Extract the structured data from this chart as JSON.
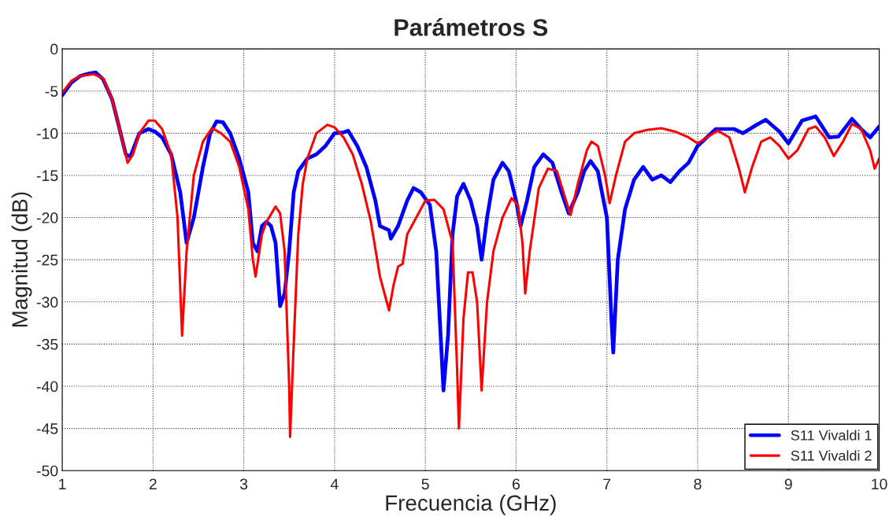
{
  "chart_data": {
    "type": "line",
    "title": "Parámetros S",
    "xlabel": "Frecuencia (GHz)",
    "ylabel": "Magnitud (dB)",
    "xlim": [
      1,
      10
    ],
    "ylim": [
      -50,
      0
    ],
    "xticks": [
      1,
      2,
      3,
      4,
      5,
      6,
      7,
      8,
      9,
      10
    ],
    "yticks": [
      -50,
      -45,
      -40,
      -35,
      -30,
      -25,
      -20,
      -15,
      -10,
      -5,
      0
    ],
    "grid": true,
    "legend": "bottom right",
    "line_style": "solid",
    "marker": "none",
    "series": [
      {
        "name": "S11 Vivaldi 1",
        "color": "#0000ff",
        "x": [
          1.0,
          1.1,
          1.2,
          1.3,
          1.37,
          1.45,
          1.55,
          1.62,
          1.7,
          1.75,
          1.85,
          1.95,
          2.02,
          2.1,
          2.2,
          2.3,
          2.37,
          2.45,
          2.55,
          2.63,
          2.7,
          2.77,
          2.85,
          2.95,
          3.05,
          3.1,
          3.15,
          3.2,
          3.25,
          3.3,
          3.35,
          3.4,
          3.45,
          3.5,
          3.55,
          3.6,
          3.7,
          3.8,
          3.9,
          4.0,
          4.1,
          4.15,
          4.25,
          4.35,
          4.45,
          4.5,
          4.6,
          4.62,
          4.7,
          4.8,
          4.87,
          4.95,
          5.05,
          5.12,
          5.2,
          5.25,
          5.3,
          5.35,
          5.42,
          5.5,
          5.57,
          5.62,
          5.68,
          5.75,
          5.85,
          5.92,
          6.0,
          6.05,
          6.12,
          6.2,
          6.3,
          6.4,
          6.5,
          6.58,
          6.68,
          6.75,
          6.82,
          6.9,
          7.0,
          7.05,
          7.07,
          7.12,
          7.2,
          7.3,
          7.4,
          7.5,
          7.6,
          7.7,
          7.8,
          7.9,
          8.0,
          8.1,
          8.2,
          8.3,
          8.4,
          8.5,
          8.65,
          8.75,
          8.9,
          9.0,
          9.15,
          9.3,
          9.45,
          9.55,
          9.7,
          9.8,
          9.9,
          10.0
        ],
        "values": [
          -5.5,
          -4,
          -3.2,
          -2.9,
          -2.8,
          -3.6,
          -6,
          -9,
          -12.5,
          -12.8,
          -10,
          -9.5,
          -9.8,
          -10.5,
          -12.5,
          -17,
          -23,
          -20,
          -14,
          -10,
          -8.6,
          -8.7,
          -10,
          -13,
          -17,
          -23,
          -24,
          -21,
          -20.5,
          -21,
          -23,
          -30.5,
          -29,
          -24,
          -17,
          -14.5,
          -13,
          -12.5,
          -11.5,
          -10,
          -9.9,
          -9.7,
          -11.5,
          -14,
          -18,
          -21,
          -21.5,
          -22.5,
          -21,
          -18,
          -16.5,
          -17,
          -18.5,
          -24,
          -40.5,
          -34,
          -22,
          -17.5,
          -16,
          -18,
          -21,
          -25,
          -20,
          -15.5,
          -13.5,
          -14.5,
          -18,
          -21,
          -18,
          -14,
          -12.5,
          -13.5,
          -17,
          -19.5,
          -17,
          -14.5,
          -13.3,
          -14.5,
          -20,
          -32,
          -36,
          -25,
          -19,
          -15.5,
          -14,
          -15.5,
          -15,
          -15.8,
          -14.5,
          -13.5,
          -11.5,
          -10.5,
          -9.5,
          -9.5,
          -9.5,
          -10,
          -9,
          -8.4,
          -9.8,
          -11.2,
          -8.5,
          -8,
          -10.5,
          -10.4,
          -8.3,
          -9.5,
          -10.5,
          -9.2
        ]
      },
      {
        "name": "S11 Vivaldi 2",
        "color": "#ff0000",
        "x": [
          1.0,
          1.1,
          1.2,
          1.35,
          1.45,
          1.55,
          1.62,
          1.72,
          1.78,
          1.85,
          1.95,
          2.02,
          2.1,
          2.2,
          2.27,
          2.32,
          2.37,
          2.45,
          2.55,
          2.65,
          2.75,
          2.85,
          2.95,
          3.05,
          3.1,
          3.13,
          3.2,
          3.25,
          3.35,
          3.4,
          3.45,
          3.5,
          3.51,
          3.55,
          3.6,
          3.65,
          3.7,
          3.8,
          3.92,
          4.0,
          4.1,
          4.2,
          4.3,
          4.4,
          4.5,
          4.6,
          4.65,
          4.7,
          4.75,
          4.8,
          4.9,
          5.0,
          5.1,
          5.2,
          5.3,
          5.35,
          5.37,
          5.42,
          5.47,
          5.52,
          5.57,
          5.62,
          5.68,
          5.75,
          5.85,
          5.95,
          6.02,
          6.07,
          6.1,
          6.15,
          6.25,
          6.35,
          6.45,
          6.55,
          6.6,
          6.68,
          6.78,
          6.83,
          6.9,
          6.98,
          7.03,
          7.1,
          7.2,
          7.3,
          7.45,
          7.6,
          7.75,
          7.9,
          8.0,
          8.1,
          8.22,
          8.35,
          8.45,
          8.52,
          8.6,
          8.7,
          8.8,
          8.9,
          9.0,
          9.1,
          9.22,
          9.3,
          9.4,
          9.5,
          9.6,
          9.7,
          9.8,
          9.9,
          9.95,
          10.0
        ],
        "values": [
          -5.2,
          -3.8,
          -3.2,
          -3.0,
          -3.5,
          -6,
          -9,
          -13.5,
          -12.5,
          -10,
          -8.5,
          -8.5,
          -9.5,
          -12.5,
          -20,
          -34,
          -24,
          -15,
          -11,
          -9.4,
          -10,
          -11,
          -14,
          -19,
          -25,
          -27,
          -22,
          -20.5,
          -18.7,
          -19.5,
          -24,
          -40,
          -46,
          -35,
          -22,
          -16,
          -13,
          -10,
          -9,
          -9.3,
          -10.5,
          -12.5,
          -16,
          -20.5,
          -27,
          -31,
          -28,
          -25.8,
          -25.5,
          -22,
          -20,
          -18,
          -17.9,
          -19,
          -23,
          -38,
          -45,
          -32,
          -26.5,
          -26.5,
          -30,
          -40.5,
          -30,
          -24,
          -20,
          -17.7,
          -18.5,
          -23,
          -29,
          -24,
          -16.5,
          -14.2,
          -14.5,
          -18,
          -19.7,
          -16,
          -12,
          -11,
          -11.5,
          -15,
          -18.3,
          -15,
          -11,
          -10,
          -9.6,
          -9.4,
          -9.8,
          -10.5,
          -11.2,
          -10.5,
          -9.7,
          -10.5,
          -14,
          -17,
          -14,
          -11,
          -10.5,
          -11.5,
          -13,
          -12,
          -9.5,
          -9.2,
          -10.5,
          -12.7,
          -11,
          -8.9,
          -9.5,
          -12,
          -14.2,
          -13
        ]
      }
    ]
  }
}
